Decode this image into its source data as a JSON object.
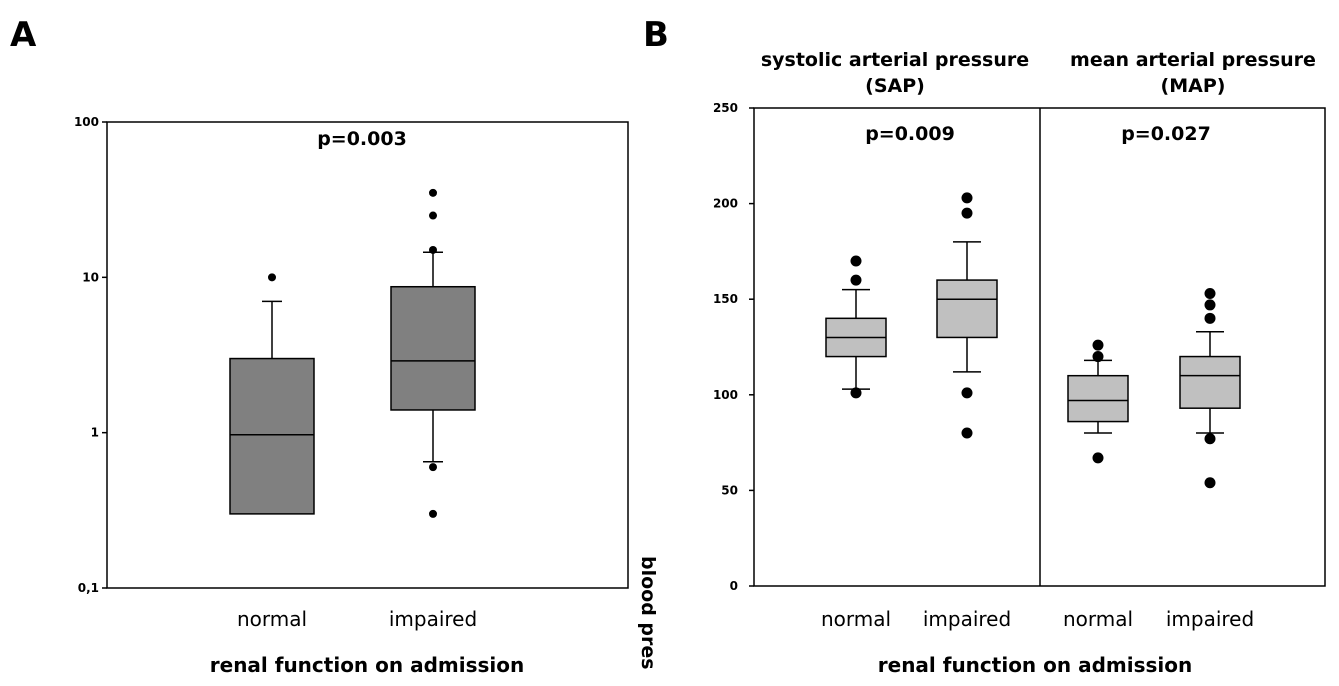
{
  "chart_data": [
    {
      "panel": "A",
      "type": "box",
      "scale": "log",
      "ylim": [
        0.1,
        100
      ],
      "yticks": [
        "0,1",
        "1",
        "10",
        "100"
      ],
      "ytick_values": [
        0.1,
        1,
        10,
        100
      ],
      "annotation": "p=0.003",
      "xlabel": "renal function on admission",
      "categories": [
        "normal",
        "impaired"
      ],
      "boxes": [
        {
          "category": "normal",
          "min": 0.3,
          "q1": 0.3,
          "median": 0.97,
          "q3": 3.0,
          "max": 7.0,
          "outliers": [
            10.0
          ]
        },
        {
          "category": "impaired",
          "min": 0.65,
          "q1": 1.4,
          "median": 2.9,
          "q3": 8.7,
          "max": 14.5,
          "outliers": [
            0.6,
            0.3,
            15.0,
            25.0,
            35.0
          ]
        }
      ],
      "box_color": "#808080"
    },
    {
      "panel": "B",
      "type": "box",
      "scale": "linear",
      "ylim": [
        0,
        250
      ],
      "yticks": [
        "0",
        "50",
        "100",
        "150",
        "200",
        "250"
      ],
      "ytick_values": [
        0,
        50,
        100,
        150,
        200,
        250
      ],
      "ylabel": "blood pres",
      "xlabel": "renal function on admission",
      "groups": [
        {
          "title_line1": "systolic arterial pressure",
          "title_line2": "(SAP)",
          "annotation": "p=0.009",
          "boxes": [
            {
              "category": "normal",
              "min": 103,
              "q1": 120,
              "median": 130,
              "q3": 140,
              "max": 155,
              "outliers": [
                101,
                160,
                170
              ]
            },
            {
              "category": "impaired",
              "min": 112,
              "q1": 130,
              "median": 150,
              "q3": 160,
              "max": 180,
              "outliers": [
                80,
                101,
                195,
                203
              ]
            }
          ]
        },
        {
          "title_line1": "mean arterial pressure",
          "title_line2": "(MAP)",
          "annotation": "p=0.027",
          "boxes": [
            {
              "category": "normal",
              "min": 80,
              "q1": 86,
              "median": 97,
              "q3": 110,
              "max": 118,
              "outliers": [
                67,
                120,
                126
              ]
            },
            {
              "category": "impaired",
              "min": 80,
              "q1": 93,
              "median": 110,
              "q3": 120,
              "max": 133,
              "outliers": [
                54,
                77,
                140,
                147,
                153
              ]
            }
          ]
        }
      ],
      "box_color": "#c0c0c0"
    }
  ]
}
